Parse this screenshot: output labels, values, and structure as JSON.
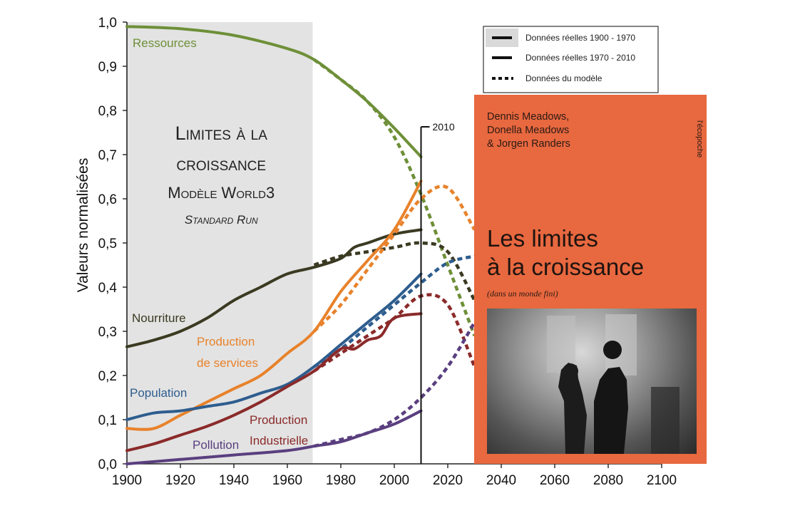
{
  "chart_data": {
    "type": "line",
    "ylabel": "Valeurs normalisées",
    "xlabel": "",
    "xlim": [
      1900,
      2100
    ],
    "ylim": [
      0,
      1
    ],
    "x_ticks": [
      "1900",
      "1920",
      "1940",
      "1960",
      "1980",
      "2000",
      "2020",
      "2040",
      "2060",
      "2080",
      "2100"
    ],
    "y_ticks": [
      "0,0",
      "0,1",
      "0,2",
      "0,3",
      "0,4",
      "0,5",
      "0,6",
      "0,7",
      "0,8",
      "0,9",
      "1,0"
    ],
    "title_lines": [
      "Limites à la",
      "croissance",
      "Modèle World3",
      "Standard Run"
    ],
    "marker_label": "2010",
    "marker_x": 2010,
    "shaded_region": [
      1900,
      1970
    ],
    "grid": false,
    "legend": {
      "position": "top-right",
      "entries": [
        "Données réelles 1900 - 1970",
        "Données réelles 1970 - 2010",
        "Données du modèle"
      ]
    },
    "series": [
      {
        "name": "Ressources",
        "label_lines": [
          "Ressources"
        ],
        "color": "#6e8f38",
        "real": [
          [
            1900,
            0.99
          ],
          [
            1920,
            0.985
          ],
          [
            1940,
            0.97
          ],
          [
            1960,
            0.94
          ],
          [
            1970,
            0.915
          ],
          [
            1980,
            0.87
          ],
          [
            1990,
            0.82
          ],
          [
            2000,
            0.76
          ],
          [
            2010,
            0.695
          ]
        ],
        "model": [
          [
            1970,
            0.915
          ],
          [
            1980,
            0.87
          ],
          [
            1990,
            0.82
          ],
          [
            2000,
            0.74
          ],
          [
            2010,
            0.61
          ],
          [
            2020,
            0.45
          ],
          [
            2030,
            0.29
          ]
        ]
      },
      {
        "name": "Nourriture",
        "label_lines": [
          "Nourriture"
        ],
        "color": "#3b3a22",
        "real": [
          [
            1900,
            0.265
          ],
          [
            1910,
            0.28
          ],
          [
            1920,
            0.3
          ],
          [
            1930,
            0.33
          ],
          [
            1940,
            0.37
          ],
          [
            1950,
            0.4
          ],
          [
            1960,
            0.43
          ],
          [
            1970,
            0.445
          ],
          [
            1980,
            0.465
          ],
          [
            1985,
            0.49
          ],
          [
            1990,
            0.5
          ],
          [
            2000,
            0.52
          ],
          [
            2010,
            0.53
          ]
        ],
        "model": [
          [
            1970,
            0.45
          ],
          [
            1980,
            0.47
          ],
          [
            1990,
            0.48
          ],
          [
            2000,
            0.49
          ],
          [
            2010,
            0.5
          ],
          [
            2020,
            0.48
          ],
          [
            2030,
            0.37
          ]
        ]
      },
      {
        "name": "Production de services",
        "label_lines": [
          "Production",
          "de services"
        ],
        "color": "#e8822b",
        "real": [
          [
            1900,
            0.08
          ],
          [
            1910,
            0.08
          ],
          [
            1920,
            0.11
          ],
          [
            1930,
            0.14
          ],
          [
            1940,
            0.17
          ],
          [
            1950,
            0.2
          ],
          [
            1960,
            0.25
          ],
          [
            1970,
            0.3
          ],
          [
            1980,
            0.39
          ],
          [
            1990,
            0.46
          ],
          [
            2000,
            0.53
          ],
          [
            2010,
            0.64
          ]
        ],
        "model": [
          [
            1970,
            0.3
          ],
          [
            1980,
            0.36
          ],
          [
            1990,
            0.44
          ],
          [
            2000,
            0.52
          ],
          [
            2010,
            0.6
          ],
          [
            2020,
            0.625
          ],
          [
            2030,
            0.53
          ]
        ]
      },
      {
        "name": "Population",
        "label_lines": [
          "Population"
        ],
        "color": "#2e5d8e",
        "real": [
          [
            1900,
            0.1
          ],
          [
            1910,
            0.115
          ],
          [
            1920,
            0.12
          ],
          [
            1930,
            0.13
          ],
          [
            1940,
            0.14
          ],
          [
            1950,
            0.16
          ],
          [
            1960,
            0.18
          ],
          [
            1970,
            0.22
          ],
          [
            1980,
            0.27
          ],
          [
            1990,
            0.32
          ],
          [
            2000,
            0.37
          ],
          [
            2010,
            0.43
          ]
        ],
        "model": [
          [
            1970,
            0.22
          ],
          [
            1980,
            0.26
          ],
          [
            1990,
            0.31
          ],
          [
            2000,
            0.36
          ],
          [
            2010,
            0.41
          ],
          [
            2020,
            0.455
          ],
          [
            2030,
            0.47
          ]
        ]
      },
      {
        "name": "Production Industrielle",
        "label_lines": [
          "Production",
          "Industrielle"
        ],
        "color": "#8b2a2a",
        "real": [
          [
            1900,
            0.03
          ],
          [
            1910,
            0.045
          ],
          [
            1920,
            0.065
          ],
          [
            1930,
            0.085
          ],
          [
            1940,
            0.11
          ],
          [
            1950,
            0.14
          ],
          [
            1960,
            0.175
          ],
          [
            1970,
            0.21
          ],
          [
            1980,
            0.26
          ],
          [
            1985,
            0.26
          ],
          [
            1990,
            0.28
          ],
          [
            1995,
            0.29
          ],
          [
            2000,
            0.33
          ],
          [
            2010,
            0.34
          ]
        ],
        "model": [
          [
            1970,
            0.21
          ],
          [
            1980,
            0.25
          ],
          [
            1990,
            0.29
          ],
          [
            2000,
            0.33
          ],
          [
            2010,
            0.38
          ],
          [
            2020,
            0.36
          ],
          [
            2030,
            0.22
          ]
        ]
      },
      {
        "name": "Pollution",
        "label_lines": [
          "Pollution"
        ],
        "color": "#5a3f7f",
        "real": [
          [
            1900,
            0.0
          ],
          [
            1920,
            0.01
          ],
          [
            1940,
            0.02
          ],
          [
            1960,
            0.03
          ],
          [
            1970,
            0.04
          ],
          [
            1980,
            0.05
          ],
          [
            1990,
            0.07
          ],
          [
            2000,
            0.09
          ],
          [
            2010,
            0.12
          ]
        ],
        "model": [
          [
            1970,
            0.04
          ],
          [
            1980,
            0.055
          ],
          [
            1990,
            0.07
          ],
          [
            2000,
            0.1
          ],
          [
            2010,
            0.15
          ],
          [
            2020,
            0.22
          ],
          [
            2030,
            0.32
          ]
        ]
      }
    ]
  },
  "book": {
    "authors": "Dennis Meadows,\nDonella Meadows\n& Jorgen Randers",
    "collection": "l'écopoche",
    "title": "Les limites\nà la croissance",
    "subtitle": "(dans un monde fini)"
  }
}
